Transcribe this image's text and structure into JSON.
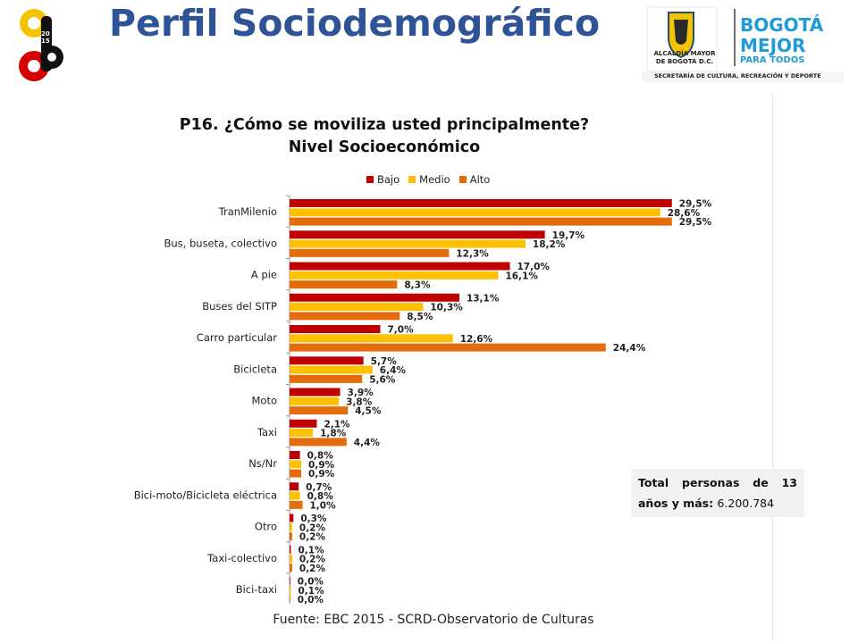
{
  "header": {
    "title": "Perfil Sociodemográfico",
    "logo_left_text": "2015",
    "logo_right": {
      "line1": "ALCALDÍA MAYOR",
      "line2": "DE BOGOTÁ D.C.",
      "brand1": "BOGOTÁ",
      "brand2": "MEJOR",
      "brand3": "PARA TODOS",
      "footer": "SECRETARÍA DE CULTURA, RECREACIÓN Y DEPORTE"
    }
  },
  "chart": {
    "title_line1": "P16. ¿Cómo se moviliza usted principalmente?",
    "title_line2": "Nivel Socioeconómico"
  },
  "chart_data": {
    "type": "bar",
    "orientation": "horizontal",
    "title": "P16. ¿Cómo se moviliza usted principalmente? Nivel Socioeconómico",
    "categories": [
      "TranMilenio",
      "Bus, buseta, colectivo",
      "A pie",
      "Buses del SITP",
      "Carro particular",
      "Bicicleta",
      "Moto",
      "Taxi",
      "Ns/Nr",
      "Bici-moto/Bicicleta eléctrica",
      "Otro",
      "Taxi-colectivo",
      "Bici-taxi"
    ],
    "series": [
      {
        "name": "Bajo",
        "color": "#C00000",
        "values": [
          29.5,
          19.7,
          17.0,
          13.1,
          7.0,
          5.7,
          3.9,
          2.1,
          0.8,
          0.7,
          0.3,
          0.1,
          0.0
        ],
        "labels": [
          "29,5%",
          "19,7%",
          "17,0%",
          "13,1%",
          "7,0%",
          "5,7%",
          "3,9%",
          "2,1%",
          "0,8%",
          "0,7%",
          "0,3%",
          "0,1%",
          "0,0%"
        ]
      },
      {
        "name": "Medio",
        "color": "#FFC000",
        "values": [
          28.6,
          18.2,
          16.1,
          10.3,
          12.6,
          6.4,
          3.8,
          1.8,
          0.9,
          0.8,
          0.2,
          0.2,
          0.1
        ],
        "labels": [
          "28,6%",
          "18,2%",
          "16,1%",
          "10,3%",
          "12,6%",
          "6,4%",
          "3,8%",
          "1,8%",
          "0,9%",
          "0,8%",
          "0,2%",
          "0,2%",
          "0,1%"
        ]
      },
      {
        "name": "Alto",
        "color": "#E46C0A",
        "values": [
          29.5,
          12.3,
          8.3,
          8.5,
          24.4,
          5.6,
          4.5,
          4.4,
          0.9,
          1.0,
          0.2,
          0.2,
          0.0
        ],
        "labels": [
          "29,5%",
          "12,3%",
          "8,3%",
          "8,5%",
          "24,4%",
          "5,6%",
          "4,5%",
          "4,4%",
          "0,9%",
          "1,0%",
          "0,2%",
          "0,2%",
          "0,0%"
        ]
      }
    ],
    "xlim": [
      0,
      30
    ],
    "legend_position": "top",
    "grid": false
  },
  "total_box": {
    "label": "Total personas de 13 años y más:",
    "value": "6.200.784"
  },
  "source": "Fuente: EBC 2015 - SCRD-Observatorio de Culturas"
}
